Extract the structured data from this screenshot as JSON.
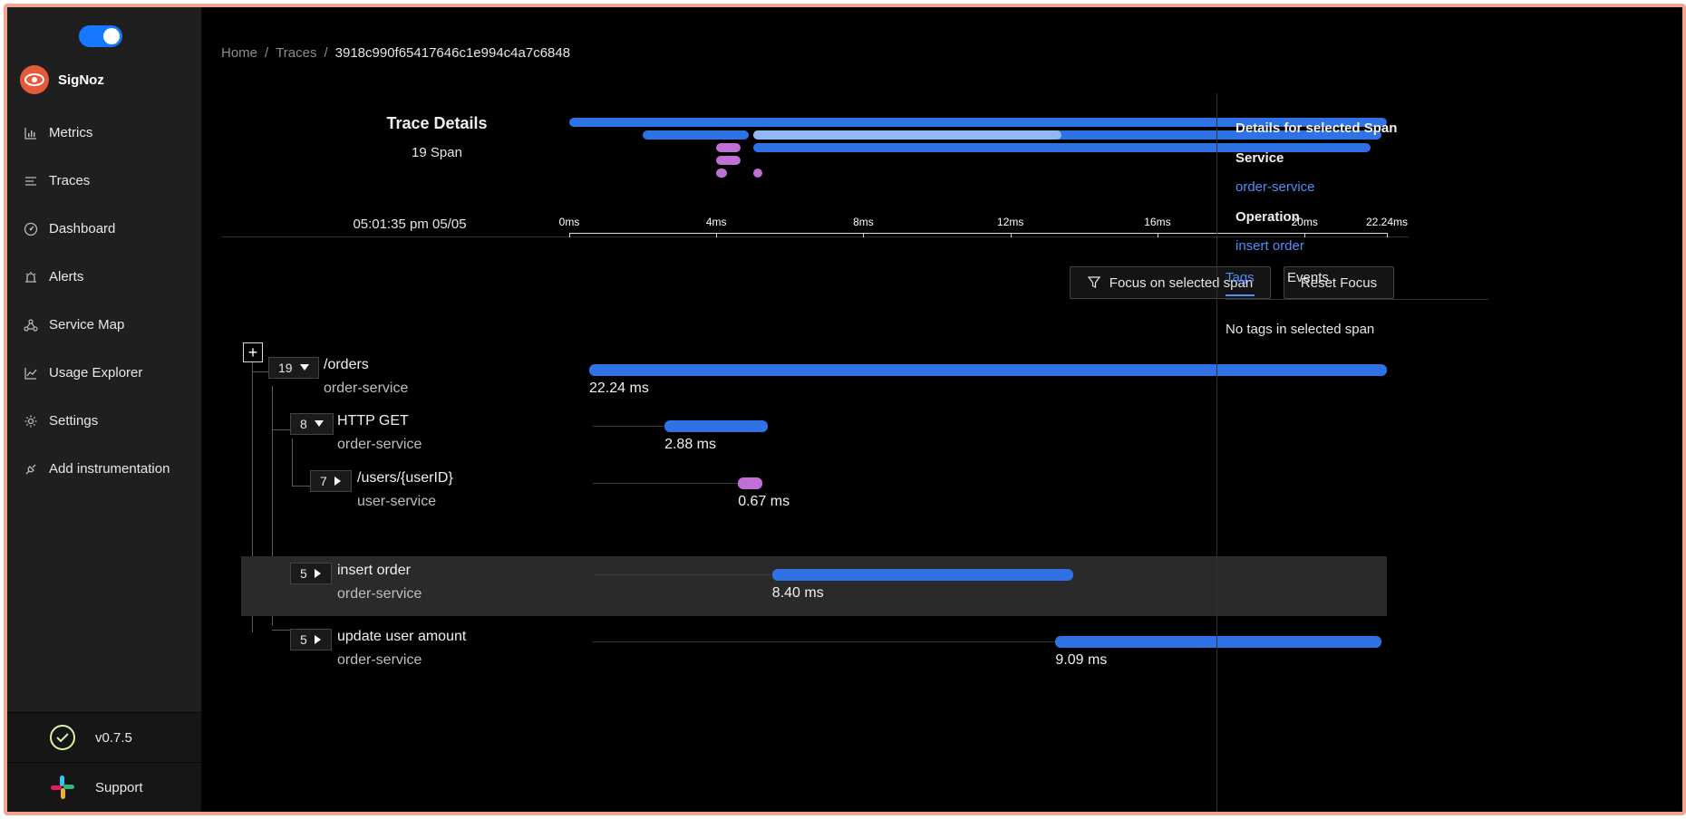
{
  "app": {
    "name": "SigNoz",
    "theme_toggle_on": true
  },
  "sidebar": {
    "items": [
      {
        "label": "Metrics",
        "icon": "bar-chart-icon"
      },
      {
        "label": "Traces",
        "icon": "list-icon"
      },
      {
        "label": "Dashboard",
        "icon": "dashboard-icon"
      },
      {
        "label": "Alerts",
        "icon": "alarm-icon"
      },
      {
        "label": "Service Map",
        "icon": "deployment-icon"
      },
      {
        "label": "Usage Explorer",
        "icon": "line-chart-icon"
      },
      {
        "label": "Settings",
        "icon": "gear-icon"
      },
      {
        "label": "Add instrumentation",
        "icon": "api-icon"
      }
    ],
    "version": "v0.7.5",
    "support": "Support"
  },
  "breadcrumb": {
    "home": "Home",
    "traces": "Traces",
    "trace_id": "3918c990f65417646c1e994c4a7c6848"
  },
  "trace": {
    "title": "Trace Details",
    "span_count": "19 Span",
    "start_time": "05:01:35 pm 05/05",
    "total_ms": 22.24
  },
  "timeline_axis": {
    "ticks": [
      {
        "label": "0ms",
        "ms": 0
      },
      {
        "label": "4ms",
        "ms": 4
      },
      {
        "label": "8ms",
        "ms": 8
      },
      {
        "label": "12ms",
        "ms": 12
      },
      {
        "label": "16ms",
        "ms": 16
      },
      {
        "label": "20ms",
        "ms": 20
      },
      {
        "label": "22.24ms",
        "ms": 22.24
      }
    ]
  },
  "minimap_bars": [
    {
      "start_ms": 0.0,
      "end_ms": 22.24,
      "row": 0,
      "color": "#2f72e6"
    },
    {
      "start_ms": 2.0,
      "end_ms": 4.88,
      "row": 1,
      "color": "#2f72e6"
    },
    {
      "start_ms": 5.0,
      "end_ms": 22.1,
      "row": 1,
      "color": "#2f72e6"
    },
    {
      "start_ms": 5.0,
      "end_ms": 13.4,
      "row": 1,
      "color": "#8fb8f5"
    },
    {
      "start_ms": 4.0,
      "end_ms": 4.67,
      "row": 2,
      "color": "#c06fd6"
    },
    {
      "start_ms": 5.0,
      "end_ms": 21.8,
      "row": 2,
      "color": "#2f72e6"
    },
    {
      "start_ms": 4.0,
      "end_ms": 4.67,
      "row": 3,
      "color": "#c06fd6"
    },
    {
      "start_ms": 4.0,
      "end_ms": 4.3,
      "row": 4,
      "color": "#c06fd6"
    },
    {
      "start_ms": 5.0,
      "end_ms": 5.25,
      "row": 4,
      "color": "#c06fd6"
    }
  ],
  "actions": {
    "focus_label": "Focus on selected span",
    "reset_label": "Reset Focus"
  },
  "spans": [
    {
      "count": "19",
      "expanded": true,
      "name": "/orders",
      "service": "order-service",
      "duration": "22.24 ms",
      "start_ms": 0.0,
      "dur_ms": 22.24,
      "color": "#2f72e6",
      "selected": false,
      "depth": 0
    },
    {
      "count": "8",
      "expanded": true,
      "name": "HTTP GET",
      "service": "order-service",
      "duration": "2.88 ms",
      "start_ms": 2.1,
      "dur_ms": 2.88,
      "color": "#2f72e6",
      "selected": false,
      "depth": 1
    },
    {
      "count": "7",
      "expanded": false,
      "name": "/users/{userID}",
      "service": "user-service",
      "duration": "0.67 ms",
      "start_ms": 4.15,
      "dur_ms": 0.67,
      "color": "#c06fd6",
      "selected": false,
      "depth": 2
    },
    {
      "count": "5",
      "expanded": false,
      "name": "insert order",
      "service": "order-service",
      "duration": "8.40 ms",
      "start_ms": 5.1,
      "dur_ms": 8.4,
      "color": "#2f72e6",
      "selected": true,
      "depth": 1
    },
    {
      "count": "5",
      "expanded": false,
      "name": "update user amount",
      "service": "order-service",
      "duration": "9.09 ms",
      "start_ms": 13.0,
      "dur_ms": 9.09,
      "color": "#2f72e6",
      "selected": false,
      "depth": 1
    }
  ],
  "details": {
    "heading": "Details for selected Span",
    "service_label": "Service",
    "service_value": "order-service",
    "operation_label": "Operation",
    "operation_value": "insert order",
    "tabs": [
      "Tags",
      "Events"
    ],
    "active_tab": "Tags",
    "empty_text": "No tags in selected span"
  }
}
